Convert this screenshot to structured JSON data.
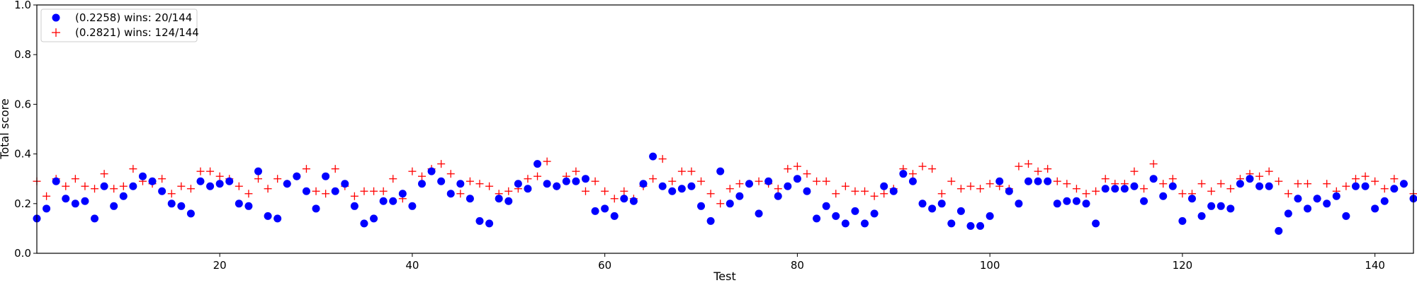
{
  "chart_data": {
    "type": "scatter",
    "title": "",
    "xlabel": "Test",
    "ylabel": "Total score",
    "xlim": [
      1,
      144
    ],
    "ylim": [
      0,
      1
    ],
    "xticks": [
      20,
      40,
      60,
      80,
      100,
      120,
      140
    ],
    "yticks": [
      0.0,
      0.2,
      0.4,
      0.6,
      0.8,
      1.0
    ],
    "xtick_labels": [
      "20",
      "40",
      "60",
      "80",
      "100",
      "120",
      "140"
    ],
    "ytick_labels": [
      "0.0",
      "0.2",
      "0.4",
      "0.6",
      "0.8",
      "1.0"
    ],
    "grid": false,
    "legend_position": "upper-left",
    "series": [
      {
        "name": "(0.2258) wins: 20/144",
        "marker": "circle",
        "color": "#0000ff",
        "values": [
          0.14,
          0.18,
          0.29,
          0.22,
          0.2,
          0.21,
          0.14,
          0.27,
          0.19,
          0.23,
          0.27,
          0.31,
          0.29,
          0.25,
          0.2,
          0.19,
          0.16,
          0.29,
          0.27,
          0.28,
          0.29,
          0.2,
          0.19,
          0.33,
          0.15,
          0.14,
          0.28,
          0.31,
          0.25,
          0.18,
          0.31,
          0.25,
          0.28,
          0.19,
          0.12,
          0.14,
          0.21,
          0.21,
          0.24,
          0.19,
          0.28,
          0.33,
          0.29,
          0.24,
          0.28,
          0.22,
          0.13,
          0.12,
          0.22,
          0.21,
          0.28,
          0.26,
          0.36,
          0.28,
          0.27,
          0.29,
          0.29,
          0.3,
          0.17,
          0.18,
          0.15,
          0.22,
          0.21,
          0.28,
          0.39,
          0.27,
          0.25,
          0.26,
          0.27,
          0.19,
          0.13,
          0.33,
          0.2,
          0.23,
          0.28,
          0.16,
          0.29,
          0.23,
          0.27,
          0.3,
          0.25,
          0.14,
          0.19,
          0.15,
          0.12,
          0.17,
          0.12,
          0.16,
          0.27,
          0.25,
          0.32,
          0.29,
          0.2,
          0.18,
          0.2,
          0.12,
          0.17,
          0.11,
          0.11,
          0.15,
          0.29,
          0.25,
          0.2,
          0.29,
          0.29,
          0.29,
          0.2,
          0.21,
          0.21,
          0.2,
          0.12,
          0.26,
          0.26,
          0.26,
          0.27,
          0.21,
          0.3,
          0.23,
          0.27,
          0.13,
          0.22,
          0.15,
          0.19,
          0.19,
          0.18,
          0.28,
          0.3,
          0.27,
          0.27,
          0.09,
          0.16,
          0.22,
          0.18,
          0.22,
          0.2,
          0.23,
          0.15,
          0.27,
          0.27,
          0.18,
          0.21,
          0.26,
          0.28,
          0.22
        ]
      },
      {
        "name": "(0.2821) wins: 124/144",
        "marker": "plus",
        "color": "#ff0000",
        "values": [
          0.29,
          0.23,
          0.3,
          0.27,
          0.3,
          0.27,
          0.26,
          0.32,
          0.26,
          0.27,
          0.34,
          0.29,
          0.28,
          0.3,
          0.24,
          0.27,
          0.26,
          0.33,
          0.33,
          0.31,
          0.3,
          0.27,
          0.24,
          0.3,
          0.26,
          0.3,
          0.28,
          0.31,
          0.34,
          0.25,
          0.24,
          0.34,
          0.27,
          0.23,
          0.25,
          0.25,
          0.25,
          0.3,
          0.22,
          0.33,
          0.31,
          0.34,
          0.36,
          0.32,
          0.24,
          0.29,
          0.28,
          0.27,
          0.24,
          0.25,
          0.26,
          0.3,
          0.31,
          0.37,
          0.27,
          0.31,
          0.33,
          0.25,
          0.29,
          0.25,
          0.22,
          0.25,
          0.22,
          0.27,
          0.3,
          0.38,
          0.29,
          0.33,
          0.33,
          0.29,
          0.24,
          0.2,
          0.26,
          0.28,
          0.28,
          0.29,
          0.28,
          0.26,
          0.34,
          0.35,
          0.32,
          0.29,
          0.29,
          0.24,
          0.27,
          0.25,
          0.25,
          0.23,
          0.24,
          0.26,
          0.34,
          0.32,
          0.35,
          0.34,
          0.24,
          0.29,
          0.26,
          0.27,
          0.26,
          0.28,
          0.27,
          0.26,
          0.35,
          0.36,
          0.33,
          0.34,
          0.29,
          0.28,
          0.26,
          0.24,
          0.25,
          0.3,
          0.28,
          0.28,
          0.33,
          0.26,
          0.36,
          0.28,
          0.3,
          0.24,
          0.24,
          0.28,
          0.25,
          0.28,
          0.26,
          0.3,
          0.32,
          0.31,
          0.33,
          0.29,
          0.24,
          0.28,
          0.28,
          0.22,
          0.28,
          0.25,
          0.27,
          0.3,
          0.31,
          0.29,
          0.26,
          0.3,
          0.28,
          0.24
        ]
      }
    ]
  }
}
